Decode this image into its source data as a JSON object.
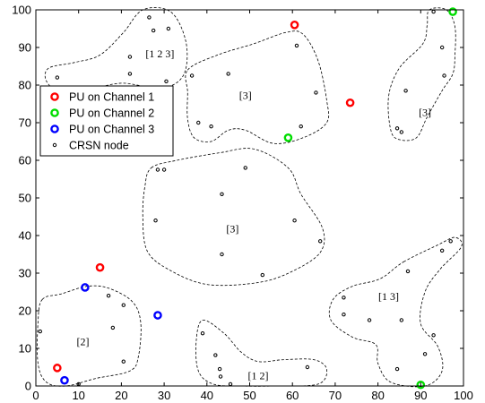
{
  "chart_data": {
    "type": "scatter",
    "title": "",
    "xlabel": "",
    "ylabel": "",
    "xlim": [
      0,
      100
    ],
    "ylim": [
      0,
      100
    ],
    "x_ticks": [
      0,
      10,
      20,
      30,
      40,
      50,
      60,
      70,
      80,
      90,
      100
    ],
    "y_ticks": [
      0,
      10,
      20,
      30,
      40,
      50,
      60,
      70,
      80,
      90,
      100
    ],
    "grid": false,
    "legend_position": "upper-left",
    "series": [
      {
        "name": "PU on Channel 1",
        "color": "#ff0000",
        "points": [
          [
            60.5,
            96
          ],
          [
            73.5,
            75.3
          ],
          [
            15,
            31.5
          ],
          [
            5,
            4.8
          ]
        ]
      },
      {
        "name": "PU on Channel 2",
        "color": "#00dd00",
        "points": [
          [
            97.5,
            99.5
          ],
          [
            59,
            66
          ],
          [
            90,
            0.3
          ]
        ]
      },
      {
        "name": "PU on Channel 3",
        "color": "#0000ff",
        "points": [
          [
            11.5,
            26.2
          ],
          [
            28.5,
            18.8
          ],
          [
            6.7,
            1.5
          ]
        ]
      },
      {
        "name": "CRSN node",
        "color": "#000000",
        "points": [
          [
            5,
            82
          ],
          [
            22,
            87.5
          ],
          [
            22,
            83
          ],
          [
            26.5,
            98
          ],
          [
            27.5,
            94.5
          ],
          [
            31,
            95
          ],
          [
            30.5,
            81
          ],
          [
            36.5,
            82.5
          ],
          [
            38,
            70
          ],
          [
            41,
            69
          ],
          [
            45,
            83
          ],
          [
            61,
            90.5
          ],
          [
            65.5,
            78
          ],
          [
            62,
            69
          ],
          [
            28.5,
            57.5
          ],
          [
            30,
            57.5
          ],
          [
            43.5,
            51
          ],
          [
            49,
            58
          ],
          [
            28,
            44
          ],
          [
            60.5,
            44
          ],
          [
            66.5,
            38.5
          ],
          [
            43.5,
            35
          ],
          [
            53,
            29.5
          ],
          [
            86.5,
            78.5
          ],
          [
            93,
            99.5
          ],
          [
            95,
            90
          ],
          [
            95.5,
            82.5
          ],
          [
            84.5,
            68.5
          ],
          [
            85.5,
            67.5
          ],
          [
            97,
            38.5
          ],
          [
            95,
            36
          ],
          [
            87,
            30.5
          ],
          [
            72,
            23.5
          ],
          [
            72,
            19
          ],
          [
            78,
            17.5
          ],
          [
            85.5,
            17.5
          ],
          [
            93,
            13.5
          ],
          [
            91,
            8.5
          ],
          [
            84.5,
            4.5
          ],
          [
            1,
            14.5
          ],
          [
            17,
            24
          ],
          [
            20.5,
            21.5
          ],
          [
            18,
            15.5
          ],
          [
            20.5,
            6.5
          ],
          [
            10,
            0.5
          ],
          [
            39,
            14
          ],
          [
            42,
            8.2
          ],
          [
            43,
            4.5
          ],
          [
            43.2,
            2.5
          ],
          [
            45.5,
            0.5
          ],
          [
            63.5,
            5
          ]
        ]
      }
    ],
    "annotations": [
      {
        "text": "[1 2 3]",
        "x": 29,
        "y": 88
      },
      {
        "text": "[3]",
        "x": 49,
        "y": 77
      },
      {
        "text": "[3]",
        "x": 91,
        "y": 72.5
      },
      {
        "text": "[3]",
        "x": 46,
        "y": 41.5
      },
      {
        "text": "[1 3]",
        "x": 82.5,
        "y": 23.5
      },
      {
        "text": "[2]",
        "x": 11,
        "y": 11.5
      },
      {
        "text": "[1 2]",
        "x": 52,
        "y": 2.5
      }
    ],
    "regions": [
      [
        [
          6,
          78
        ],
        [
          13,
          79
        ],
        [
          20,
          80.5
        ],
        [
          26.5,
          79.5
        ],
        [
          32,
          80
        ],
        [
          35,
          84
        ],
        [
          35,
          92
        ],
        [
          31.5,
          99.5
        ],
        [
          25,
          100
        ],
        [
          20.5,
          94
        ],
        [
          15,
          88
        ],
        [
          9,
          86
        ],
        [
          3,
          84.5
        ],
        [
          2.5,
          81
        ]
      ],
      [
        [
          35.5,
          84
        ],
        [
          42.5,
          88
        ],
        [
          51,
          91
        ],
        [
          58.5,
          94
        ],
        [
          62.5,
          93.5
        ],
        [
          66,
          86.5
        ],
        [
          68,
          76
        ],
        [
          68,
          70
        ],
        [
          62.5,
          66
        ],
        [
          55.5,
          64.5
        ],
        [
          49,
          68
        ],
        [
          45,
          68
        ],
        [
          41,
          65
        ],
        [
          37,
          66
        ],
        [
          35.5,
          71
        ],
        [
          35.5,
          78
        ]
      ],
      [
        [
          92,
          100
        ],
        [
          96,
          100
        ],
        [
          98,
          95.5
        ],
        [
          98,
          88
        ],
        [
          97.5,
          83
        ],
        [
          95,
          78.5
        ],
        [
          91.5,
          71.5
        ],
        [
          89,
          66
        ],
        [
          85,
          65.5
        ],
        [
          83,
          68
        ],
        [
          82.5,
          77
        ],
        [
          85,
          84.5
        ],
        [
          90.5,
          91
        ],
        [
          91.5,
          96
        ]
      ],
      [
        [
          27,
          58
        ],
        [
          33,
          60
        ],
        [
          43,
          62
        ],
        [
          51,
          63
        ],
        [
          59,
          58
        ],
        [
          62,
          51
        ],
        [
          67,
          42
        ],
        [
          66.5,
          35.5
        ],
        [
          60,
          30.5
        ],
        [
          52,
          27.5
        ],
        [
          40,
          27
        ],
        [
          31,
          31
        ],
        [
          26,
          36
        ],
        [
          25,
          45
        ],
        [
          25.5,
          53
        ]
      ],
      [
        [
          86,
          33
        ],
        [
          94,
          37.5
        ],
        [
          98,
          39.5
        ],
        [
          99.5,
          37
        ],
        [
          94.5,
          31
        ],
        [
          91,
          25
        ],
        [
          90,
          16.5
        ],
        [
          94,
          10.5
        ],
        [
          95,
          4
        ],
        [
          91,
          0
        ],
        [
          83,
          1
        ],
        [
          80,
          6
        ],
        [
          79.5,
          11
        ],
        [
          74,
          13
        ],
        [
          69,
          17.5
        ],
        [
          69.5,
          23
        ],
        [
          74,
          26.5
        ],
        [
          80.5,
          28.5
        ]
      ],
      [
        [
          1.5,
          23
        ],
        [
          6,
          24.5
        ],
        [
          12,
          26.5
        ],
        [
          17,
          26
        ],
        [
          22.5,
          22.5
        ],
        [
          24.5,
          17
        ],
        [
          24,
          8
        ],
        [
          22,
          4
        ],
        [
          14,
          2
        ],
        [
          7,
          0
        ],
        [
          2.5,
          1
        ],
        [
          0.5,
          6
        ],
        [
          0.5,
          17
        ]
      ],
      [
        [
          39,
          17.5
        ],
        [
          44,
          14
        ],
        [
          48,
          9
        ],
        [
          52,
          6.5
        ],
        [
          58,
          7
        ],
        [
          65,
          7
        ],
        [
          68,
          4.5
        ],
        [
          66,
          0.5
        ],
        [
          56,
          0
        ],
        [
          48,
          0
        ],
        [
          41.5,
          0.5
        ],
        [
          38,
          4
        ],
        [
          37.5,
          12
        ]
      ]
    ]
  }
}
